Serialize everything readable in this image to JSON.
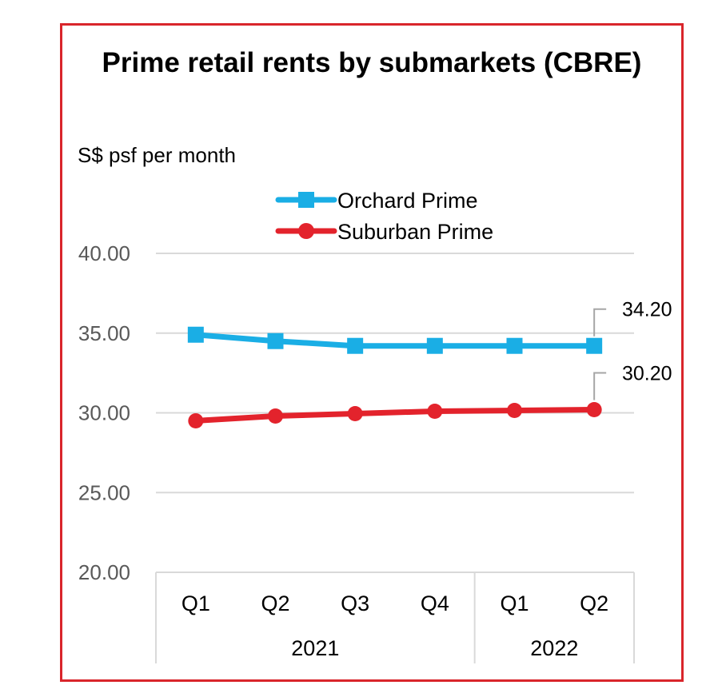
{
  "chart_data": {
    "type": "line",
    "title": "Prime retail rents by submarkets (CBRE)",
    "ylabel": "S$ psf per month",
    "ylim": [
      20,
      40
    ],
    "yticks": [
      "40.00",
      "35.00",
      "30.00",
      "25.00",
      "20.00"
    ],
    "categories": [
      "Q1",
      "Q2",
      "Q3",
      "Q4",
      "Q1",
      "Q2"
    ],
    "year_groups": [
      {
        "label": "2021",
        "count": 4
      },
      {
        "label": "2022",
        "count": 2
      }
    ],
    "legend_position": "top",
    "grid": true,
    "series": [
      {
        "name": "Orchard Prime",
        "color": "#1aaee5",
        "marker": "square",
        "values": [
          34.9,
          34.5,
          34.2,
          34.2,
          34.2,
          34.2
        ],
        "end_label": "34.20"
      },
      {
        "name": "Suburban Prime",
        "color": "#e3232c",
        "marker": "circle",
        "values": [
          29.5,
          29.8,
          29.95,
          30.1,
          30.15,
          30.2
        ],
        "end_label": "30.20"
      }
    ]
  }
}
